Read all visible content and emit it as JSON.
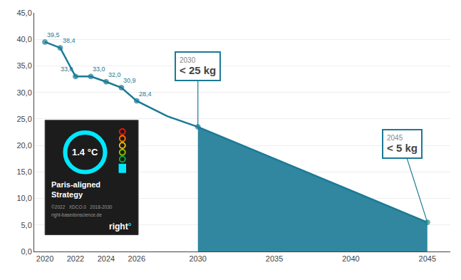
{
  "chart_data": {
    "type": "line",
    "x": [
      2020,
      2021,
      2022,
      2023,
      2024,
      2025,
      2026,
      2027,
      2028,
      2029,
      2030,
      2045
    ],
    "series": [
      {
        "type": "area",
        "color": "#1b7a96",
        "x": [
          2030,
          2045
        ],
        "values": [
          23.5,
          5.5
        ]
      },
      {
        "type": "line",
        "color": "#1b7a96",
        "marker": "circle",
        "values": [
          39.5,
          38.4,
          33.0,
          33.0,
          32.0,
          30.9,
          28.4,
          27.0,
          25.5,
          24.5,
          23.5,
          5.5
        ],
        "value_labels": [
          "39,5",
          "38,4",
          "33,0",
          "33,0",
          "32,0",
          "30,9",
          "28,4",
          null,
          null,
          null,
          null,
          null
        ],
        "colors": [
          "#1b7a96",
          "#1b7a96",
          "#1b7a96",
          "#1b7a96",
          "#1b7a96",
          "#1b7a96",
          "#1b7a96",
          null,
          null,
          null,
          "#1b7a96",
          "#1a9478"
        ]
      }
    ],
    "xlim": [
      2019.3,
      2046.5
    ],
    "ylim": [
      0,
      45
    ],
    "xticks": [
      2020,
      2022,
      2024,
      2026,
      2030,
      2035,
      2040,
      2045
    ],
    "yticks": [
      {
        "value": 0.0,
        "label": "0,0"
      },
      {
        "value": 5.0,
        "label": "5,0"
      },
      {
        "value": 10.0,
        "label": "10,0"
      },
      {
        "value": 15.0,
        "label": "15,0"
      },
      {
        "value": 20.0,
        "label": "20,0"
      },
      {
        "value": 25.0,
        "label": "25,0"
      },
      {
        "value": 30.0,
        "label": "30,0"
      },
      {
        "value": 35.0,
        "label": "35,0"
      },
      {
        "value": 40.0,
        "label": "40,0"
      },
      {
        "value": 45.0,
        "label": "45,0"
      }
    ],
    "grid": "y",
    "data_labels": true,
    "annotations": [
      {
        "x": 2030,
        "label": "2030",
        "text": "< 25 kg"
      },
      {
        "x": 2045,
        "label": "2045",
        "text": "< 5 kg"
      }
    ],
    "badge": {
      "title": "1.4 °C",
      "lines": [
        "Paris-aligned",
        "Strategy"
      ],
      "fine_print": [
        "©2022   XDCO.0   2018-2030",
        "right-basedonscience.de"
      ],
      "logo": "right",
      "logo_mark": "°"
    }
  }
}
